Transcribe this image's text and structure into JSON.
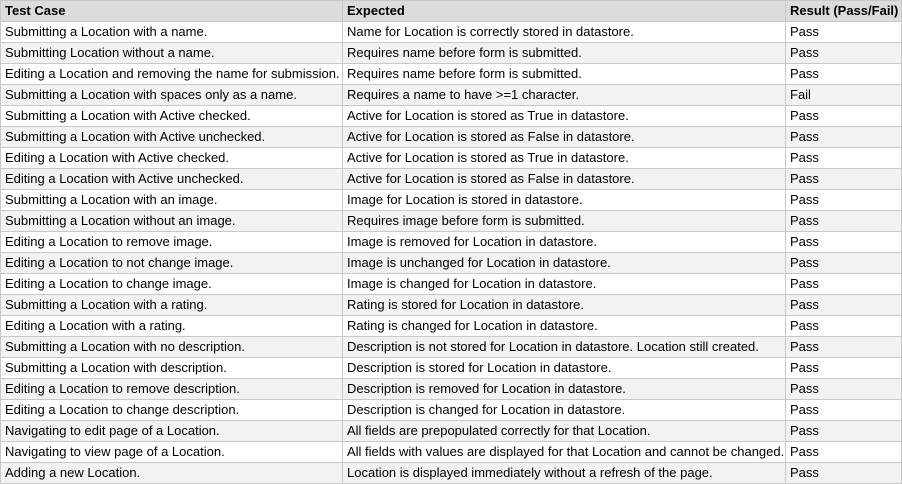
{
  "table": {
    "headers": [
      "Test Case",
      "Expected",
      "Result (Pass/Fail)"
    ],
    "rows": [
      [
        "Submitting a Location with a name.",
        "Name for Location is correctly stored in datastore.",
        "Pass"
      ],
      [
        "Submitting Location without a name.",
        "Requires name before form is submitted.",
        "Pass"
      ],
      [
        "Editing a Location and removing the name for submission.",
        "Requires name before form is submitted.",
        "Pass"
      ],
      [
        "Submitting a Location with spaces only as a name.",
        "Requires a name to have >=1 character.",
        "Fail"
      ],
      [
        "Submitting a Location with Active checked.",
        "Active for Location is stored as True in datastore.",
        "Pass"
      ],
      [
        "Submitting a Location with Active unchecked.",
        "Active for Location is stored as False in datastore.",
        "Pass"
      ],
      [
        "Editing a Location with Active checked.",
        "Active for Location is stored as True in datastore.",
        "Pass"
      ],
      [
        "Editing a Location with Active unchecked.",
        "Active for Location is stored as False in datastore.",
        "Pass"
      ],
      [
        "Submitting a Location with an image.",
        "Image for Location is stored in datastore.",
        "Pass"
      ],
      [
        "Submitting a Location without an image.",
        "Requires image before form is submitted.",
        "Pass"
      ],
      [
        "Editing a Location to remove image.",
        "Image is removed for Location in datastore.",
        "Pass"
      ],
      [
        "Editing a Location to not change image.",
        "Image is unchanged for Location in datastore.",
        "Pass"
      ],
      [
        "Editing a Location to change image.",
        "Image is changed for Location in datastore.",
        "Pass"
      ],
      [
        "Submitting a Location with a rating.",
        "Rating is stored for Location in datastore.",
        "Pass"
      ],
      [
        "Editing a Location with a rating.",
        "Rating is changed for Location in datastore.",
        "Pass"
      ],
      [
        "Submitting a Location with no description.",
        "Description is not stored for Location in datastore. Location still created.",
        "Pass"
      ],
      [
        "Submitting a Location with description.",
        "Description is stored for Location in datastore.",
        "Pass"
      ],
      [
        "Editing a Location to remove description.",
        "Description is removed for Location in datastore.",
        "Pass"
      ],
      [
        "Editing a Location to change description.",
        "Description is changed for Location in datastore.",
        "Pass"
      ],
      [
        "Navigating to edit page of a Location.",
        "All fields are prepopulated correctly for that Location.",
        "Pass"
      ],
      [
        "Navigating to view page of a Location.",
        "All fields with values are displayed for that Location and cannot be changed.",
        "Pass"
      ],
      [
        "Adding a new Location.",
        "Location is displayed immediately without a refresh of the page.",
        "Pass"
      ]
    ]
  }
}
